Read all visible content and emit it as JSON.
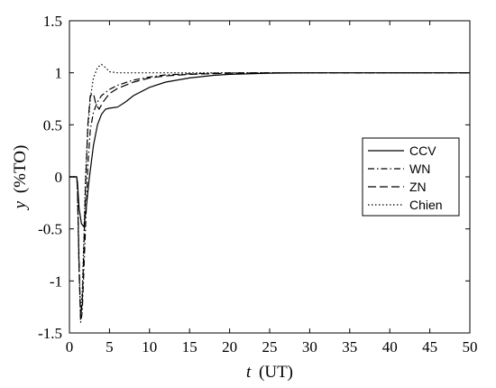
{
  "chart_data": {
    "type": "line",
    "xlabel_var": "t",
    "xlabel_unit": "(UT)",
    "ylabel_var": "y",
    "ylabel_unit": "(%TO)",
    "xlim": [
      0,
      50
    ],
    "ylim": [
      -1.5,
      1.5
    ],
    "xticks": [
      "0",
      "5",
      "10",
      "15",
      "20",
      "25",
      "30",
      "35",
      "40",
      "45",
      "50"
    ],
    "yticks": [
      "-1.5",
      "-1",
      "-0.5",
      "0",
      "0.5",
      "1",
      "1.5"
    ],
    "grid": false,
    "legend_position": "center-right",
    "series": [
      {
        "name": "CCV",
        "style": "solid",
        "x": [
          0,
          0.9,
          1.0,
          1.2,
          1.5,
          1.8,
          2.1,
          2.5,
          3.0,
          3.5,
          4.0,
          4.5,
          5.0,
          6.0,
          7.0,
          8.0,
          10.0,
          12.0,
          15.0,
          18.0,
          20.0,
          25.0,
          30.0,
          40.0,
          50.0
        ],
        "y": [
          0,
          0,
          -0.05,
          -0.3,
          -0.45,
          -0.48,
          -0.3,
          0.0,
          0.3,
          0.5,
          0.6,
          0.65,
          0.66,
          0.67,
          0.72,
          0.78,
          0.86,
          0.91,
          0.95,
          0.975,
          0.985,
          0.995,
          1.0,
          1.0,
          1.0
        ]
      },
      {
        "name": "WN",
        "style": "dashdot",
        "x": [
          0,
          0.9,
          1.0,
          1.2,
          1.4,
          1.6,
          1.8,
          2.0,
          2.3,
          2.6,
          3.0,
          3.5,
          4.0,
          5.0,
          6.0,
          8.0,
          10.0,
          12.0,
          15.0,
          20.0,
          25.0,
          30.0,
          40.0,
          50.0
        ],
        "y": [
          0,
          0,
          -0.1,
          -0.8,
          -1.4,
          -1.3,
          -0.9,
          -0.5,
          0.1,
          0.45,
          0.62,
          0.72,
          0.78,
          0.84,
          0.88,
          0.93,
          0.96,
          0.98,
          0.99,
          1.0,
          1.0,
          1.0,
          1.0,
          1.0
        ]
      },
      {
        "name": "ZN",
        "style": "dashed",
        "x": [
          0,
          0.9,
          1.0,
          1.2,
          1.4,
          1.6,
          1.8,
          2.0,
          2.3,
          2.6,
          3.0,
          3.3,
          3.7,
          4.2,
          5.0,
          6.0,
          8.0,
          10.0,
          12.0,
          15.0,
          20.0,
          25.0,
          30.0,
          40.0,
          50.0
        ],
        "y": [
          0,
          0,
          -0.1,
          -0.9,
          -1.35,
          -1.2,
          -0.7,
          -0.1,
          0.5,
          0.78,
          0.8,
          0.7,
          0.65,
          0.72,
          0.8,
          0.85,
          0.91,
          0.95,
          0.97,
          0.985,
          0.995,
          1.0,
          1.0,
          1.0,
          1.0
        ]
      },
      {
        "name": "Chien",
        "style": "dotted",
        "x": [
          0,
          0.9,
          1.0,
          1.2,
          1.4,
          1.6,
          1.8,
          2.0,
          2.3,
          2.6,
          3.0,
          3.5,
          4.0,
          4.5,
          5.0,
          6.0,
          7.0,
          8.0,
          10.0,
          20.0,
          50.0
        ],
        "y": [
          0,
          0,
          -0.1,
          -0.9,
          -1.3,
          -1.1,
          -0.6,
          0.0,
          0.45,
          0.75,
          0.95,
          1.05,
          1.08,
          1.05,
          1.01,
          1.0,
          1.0,
          1.0,
          1.0,
          1.0,
          1.0
        ]
      }
    ]
  }
}
